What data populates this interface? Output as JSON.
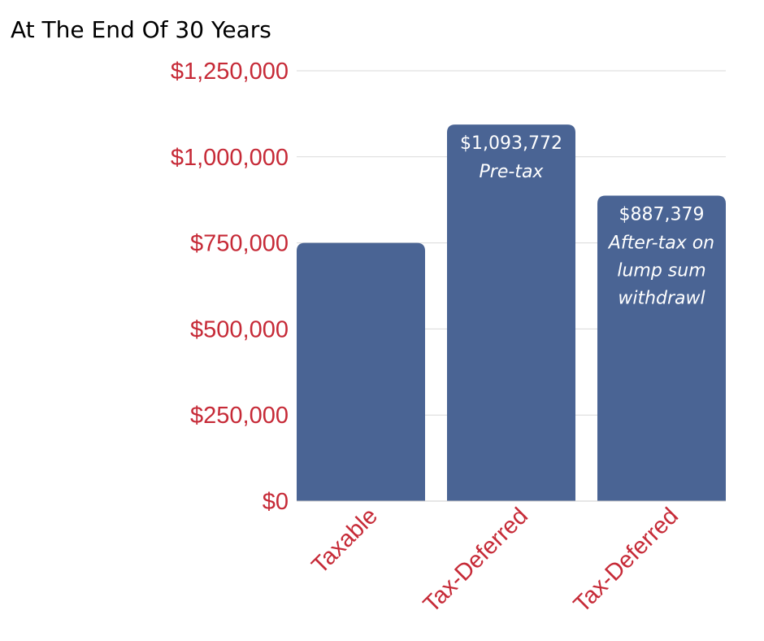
{
  "chart_data": {
    "type": "bar",
    "title": "At The End Of 30 Years",
    "categories": [
      "Taxable",
      "Tax-Deferred",
      "Tax-Deferred"
    ],
    "values": [
      750000,
      1093772,
      887379
    ],
    "data_labels": [
      {
        "value": "",
        "note": []
      },
      {
        "value": "$1,093,772",
        "note": [
          "Pre-tax"
        ]
      },
      {
        "value": "$887,379",
        "note": [
          "After-tax on",
          "lump sum",
          "withdrawl"
        ]
      }
    ],
    "yticks": [
      "$0",
      "$250,000",
      "$500,000",
      "$750,000",
      "$1,000,000",
      "$1,250,000"
    ],
    "ylim": [
      0,
      1250000
    ],
    "xlabel": "",
    "ylabel": "",
    "grid": true,
    "colors": {
      "bar": "#4a6494",
      "tick_label": "#c62a37",
      "grid": "#d9d9d9"
    }
  }
}
